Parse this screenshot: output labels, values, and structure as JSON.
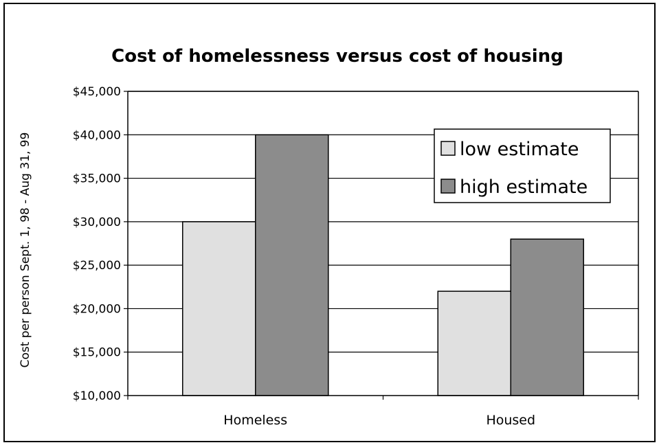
{
  "chart_data": {
    "type": "bar",
    "title": "Cost of homelessness versus cost of housing",
    "xlabel": "",
    "ylabel": "Cost per person Sept. 1, 98 - Aug 31, 99",
    "categories": [
      "Homeless",
      "Housed"
    ],
    "series": [
      {
        "name": "low estimate",
        "values": [
          30000,
          22000
        ],
        "color": "#e0e0e0"
      },
      {
        "name": "high estimate",
        "values": [
          40000,
          28000
        ],
        "color": "#8c8c8c"
      }
    ],
    "ylim": [
      10000,
      45000
    ],
    "yticks": [
      10000,
      15000,
      20000,
      25000,
      30000,
      35000,
      40000,
      45000
    ],
    "ytick_labels": [
      "$10,000",
      "$15,000",
      "$20,000",
      "$25,000",
      "$30,000",
      "$35,000",
      "$40,000",
      "$45,000"
    ],
    "grid": true,
    "legend_position": "top-right"
  }
}
